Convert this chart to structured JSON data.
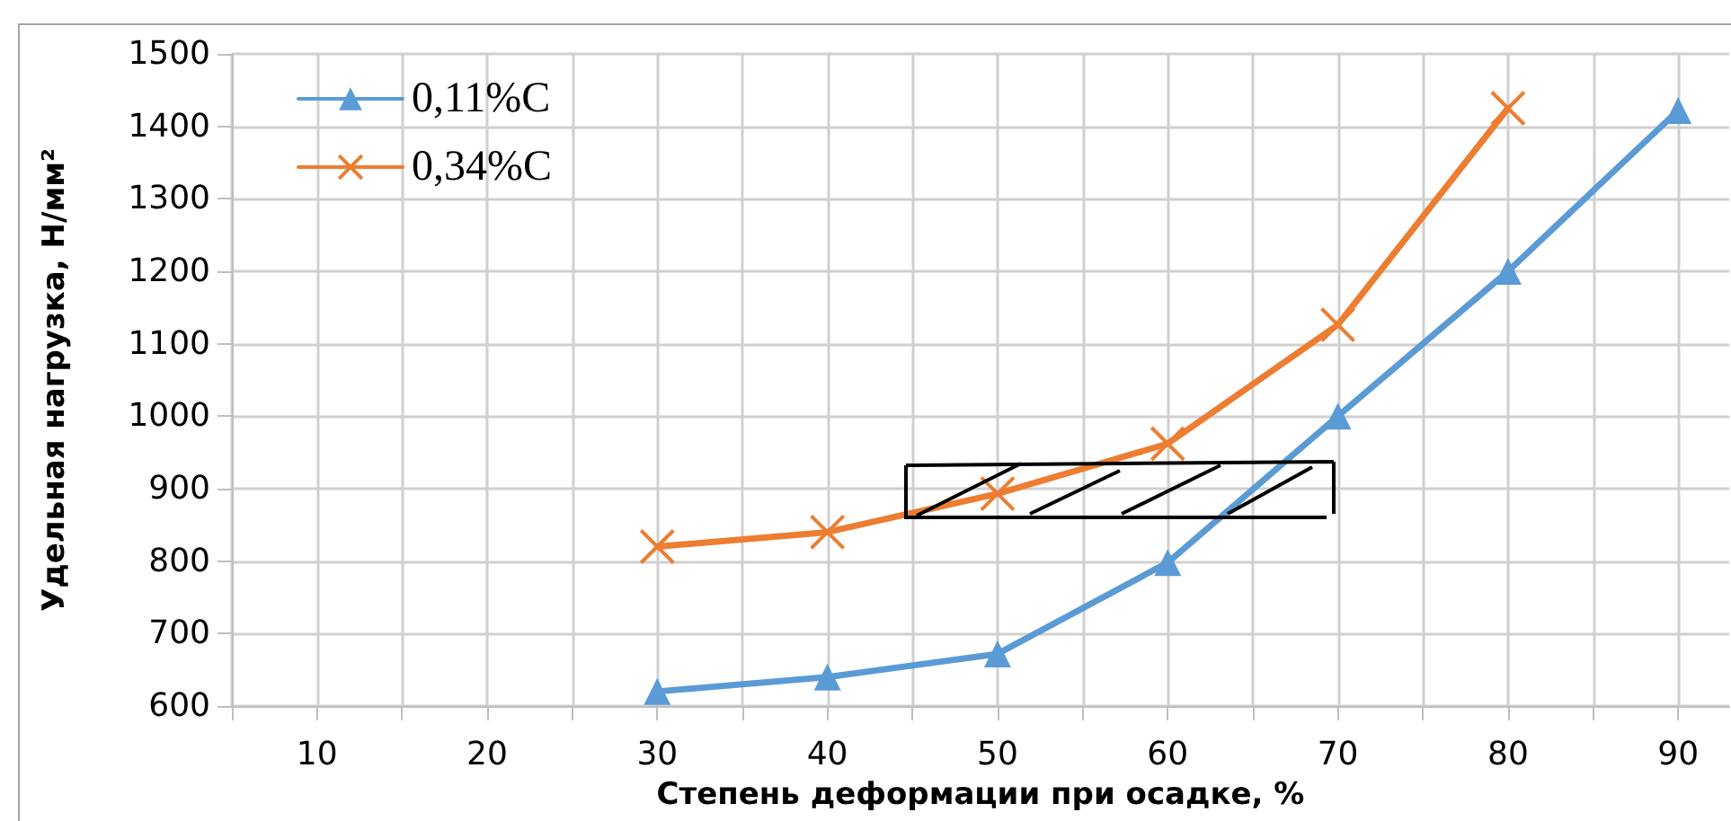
{
  "chart_data": {
    "type": "line",
    "xlabel": "Степень деформации при осадке, %",
    "ylabel": "Удельная нагрузка, Н/мм²",
    "x": [
      30,
      40,
      50,
      60,
      70,
      80,
      90
    ],
    "series": [
      {
        "name": "0,11%C",
        "color": "#5b9bd5",
        "marker": "triangle",
        "values": [
          620,
          640,
          672,
          798,
          1000,
          1200,
          1422
        ]
      },
      {
        "name": "0,34%C",
        "color": "#ed7d31",
        "marker": "cross",
        "values": [
          820,
          840,
          893,
          962,
          1126,
          1425,
          null
        ]
      }
    ],
    "xlim": [
      5,
      93
    ],
    "xticks": [
      {
        "value": 5,
        "label": null
      },
      10,
      {
        "value": 15,
        "label": null
      },
      20,
      {
        "value": 25,
        "label": null
      },
      30,
      {
        "value": 35,
        "label": null
      },
      40,
      {
        "value": 45,
        "label": null
      },
      50,
      {
        "value": 55,
        "label": null
      },
      60,
      {
        "value": 65,
        "label": null
      },
      70,
      {
        "value": 75,
        "label": null
      },
      80,
      {
        "value": 85,
        "label": null
      },
      90
    ],
    "ylim": [
      600,
      1500
    ],
    "yticks": [
      600,
      700,
      800,
      900,
      1000,
      1100,
      1200,
      1300,
      1400,
      1500
    ],
    "grid": true,
    "legend": "top left",
    "line_style": "solid"
  }
}
